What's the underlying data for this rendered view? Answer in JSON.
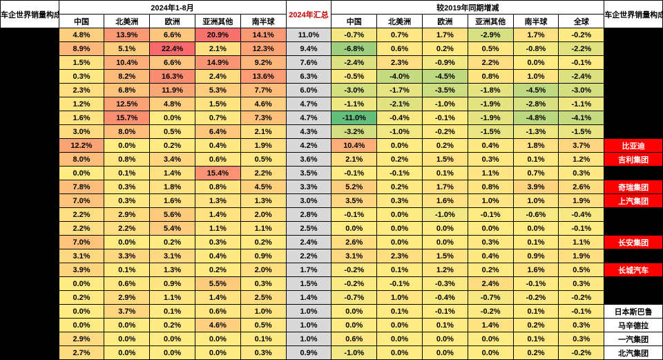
{
  "headers": {
    "left_title": "车企世界销量构成",
    "right_title": "车企世界销量构成",
    "group1": "2024年1-8月",
    "group2": "2024年汇总",
    "group3": "较2019年同期增减",
    "cols1": [
      "中国",
      "北美洲",
      "欧洲",
      "亚洲其他",
      "南半球"
    ],
    "total_col": "",
    "cols3": [
      "中国",
      "北美洲",
      "欧洲",
      "亚洲其他",
      "南半球",
      "全球"
    ]
  },
  "colorScale": {
    "min": -11.0,
    "mid": 0.0,
    "max": 22.4,
    "neg": "#63be7b",
    "zero": "#ffeb84",
    "pos": "#f8696b"
  },
  "totalBg": "#d9d9d9",
  "rows": [
    {
      "left": "",
      "right": "",
      "rightStyle": "black",
      "p1": [
        4.8,
        13.9,
        6.6,
        20.9,
        14.1
      ],
      "tot": 11.0,
      "p3": [
        -0.7,
        0.7,
        1.7,
        -2.9,
        1.7,
        -0.2
      ]
    },
    {
      "left": "",
      "right": "",
      "rightStyle": "black",
      "p1": [
        8.9,
        5.1,
        22.4,
        2.1,
        12.3
      ],
      "tot": 9.4,
      "p3": [
        -6.8,
        0.6,
        0.2,
        0.5,
        -0.8,
        -2.2
      ]
    },
    {
      "left": "",
      "right": "",
      "rightStyle": "black",
      "p1": [
        1.5,
        10.4,
        6.6,
        14.9,
        9.2
      ],
      "tot": 7.6,
      "p3": [
        -2.4,
        2.3,
        -0.9,
        2.2,
        0.0,
        -0.1
      ]
    },
    {
      "left": "",
      "right": "",
      "rightStyle": "black",
      "p1": [
        0.3,
        8.2,
        16.3,
        2.4,
        13.6
      ],
      "tot": 6.3,
      "p3": [
        -0.5,
        -4.0,
        -4.5,
        0.8,
        1.0,
        -2.4
      ]
    },
    {
      "left": "",
      "right": "",
      "rightStyle": "black",
      "p1": [
        2.3,
        6.8,
        11.9,
        5.3,
        7.7
      ],
      "tot": 6.0,
      "p3": [
        -3.0,
        -1.7,
        -3.5,
        -1.8,
        -4.5,
        -3.0
      ]
    },
    {
      "left": "",
      "right": "",
      "rightStyle": "black",
      "p1": [
        1.2,
        12.5,
        4.8,
        1.5,
        4.6
      ],
      "tot": 4.7,
      "p3": [
        -1.1,
        -2.1,
        -1.0,
        -1.9,
        -2.8,
        -1.1
      ]
    },
    {
      "left": "",
      "right": "",
      "rightStyle": "black",
      "p1": [
        1.6,
        15.7,
        0.0,
        0.7,
        7.3
      ],
      "tot": 4.7,
      "p3": [
        -11.0,
        -0.4,
        -0.1,
        -1.9,
        -4.8,
        -4.1
      ]
    },
    {
      "left": "",
      "right": "",
      "rightStyle": "black",
      "p1": [
        3.0,
        8.0,
        0.5,
        6.4,
        2.1
      ],
      "tot": 4.3,
      "p3": [
        -3.2,
        -1.0,
        -0.2,
        -1.5,
        -1.3,
        -1.5
      ]
    },
    {
      "left": "",
      "right": "比亚迪",
      "rightStyle": "red",
      "p1": [
        12.2,
        0.0,
        0.2,
        0.4,
        1.9
      ],
      "tot": 4.2,
      "p3": [
        10.4,
        0.0,
        0.2,
        0.4,
        1.8,
        3.7
      ]
    },
    {
      "left": "",
      "right": "吉利集团",
      "rightStyle": "red",
      "p1": [
        8.0,
        0.8,
        3.4,
        0.6,
        0.5
      ],
      "tot": 3.6,
      "p3": [
        2.1,
        0.2,
        1.5,
        0.3,
        0.1,
        1.2
      ]
    },
    {
      "left": "",
      "right": "",
      "rightStyle": "black",
      "p1": [
        0.0,
        0.1,
        1.4,
        15.4,
        2.2
      ],
      "tot": 3.5,
      "p3": [
        -0.1,
        -0.1,
        0.1,
        1.1,
        0.7,
        0.3
      ]
    },
    {
      "left": "",
      "right": "奇瑞集团",
      "rightStyle": "red",
      "p1": [
        7.8,
        0.3,
        1.8,
        0.8,
        4.5
      ],
      "tot": 3.3,
      "p3": [
        5.2,
        0.2,
        1.7,
        0.8,
        3.9,
        2.6
      ]
    },
    {
      "left": "",
      "right": "上汽集团",
      "rightStyle": "red",
      "p1": [
        7.0,
        0.3,
        1.6,
        1.3,
        1.3
      ],
      "tot": 3.0,
      "p3": [
        3.5,
        0.3,
        1.6,
        1.0,
        1.0,
        1.9
      ]
    },
    {
      "left": "",
      "right": "",
      "rightStyle": "black",
      "p1": [
        2.2,
        2.9,
        5.6,
        1.4,
        2.0
      ],
      "tot": 2.8,
      "p3": [
        -0.1,
        0.0,
        -1.0,
        -0.1,
        -0.6,
        -0.4
      ]
    },
    {
      "left": "",
      "right": "",
      "rightStyle": "black",
      "p1": [
        2.2,
        2.2,
        5.4,
        1.1,
        1.1
      ],
      "tot": 2.5,
      "p3": [
        0.0,
        0.0,
        0.0,
        0.0,
        0.0,
        -0.1
      ]
    },
    {
      "left": "",
      "right": "长安集团",
      "rightStyle": "red",
      "p1": [
        7.0,
        0.0,
        0.2,
        0.3,
        0.2
      ],
      "tot": 2.4,
      "p3": [
        2.6,
        0.0,
        0.0,
        0.3,
        0.1,
        1.1
      ]
    },
    {
      "left": "",
      "right": "",
      "rightStyle": "black",
      "p1": [
        3.1,
        3.3,
        3.1,
        0.4,
        0.9
      ],
      "tot": 2.2,
      "p3": [
        3.1,
        2.3,
        1.5,
        0.4,
        0.9,
        1.9
      ]
    },
    {
      "left": "",
      "right": "长城汽车",
      "rightStyle": "red",
      "p1": [
        3.9,
        0.1,
        1.3,
        0.2,
        2.0
      ],
      "tot": 1.7,
      "p3": [
        -0.2,
        0.1,
        1.2,
        0.2,
        1.6,
        0.5
      ]
    },
    {
      "left": "",
      "right": "",
      "rightStyle": "black",
      "p1": [
        0.0,
        0.6,
        0.9,
        5.5,
        0.3
      ],
      "tot": 1.5,
      "p3": [
        -0.2,
        -0.1,
        -0.3,
        2.4,
        -0.1,
        0.3
      ]
    },
    {
      "left": "",
      "right": "",
      "rightStyle": "black",
      "p1": [
        0.2,
        2.9,
        1.1,
        1.4,
        2.5
      ],
      "tot": 1.4,
      "p3": [
        -0.7,
        1.0,
        -0.4,
        -0.7,
        -0.2,
        -0.2
      ]
    },
    {
      "left": "",
      "right": "日本斯巴鲁",
      "rightStyle": "white",
      "p1": [
        0.0,
        3.7,
        0.1,
        0.6,
        1.0
      ],
      "tot": 1.0,
      "p3": [
        0.0,
        0.1,
        -0.1,
        -0.2,
        0.1,
        -0.1
      ]
    },
    {
      "left": "",
      "right": "马辛德拉",
      "rightStyle": "white",
      "p1": [
        0.0,
        0.0,
        0.2,
        4.6,
        0.5
      ],
      "tot": 1.0,
      "p3": [
        0.0,
        0.0,
        0.1,
        1.4,
        0.2,
        0.3
      ]
    },
    {
      "left": "",
      "right": "一汽集团",
      "rightStyle": "white",
      "p1": [
        2.9,
        0.0,
        0.0,
        0.0,
        0.1
      ],
      "tot": 1.0,
      "p3": [
        0.6,
        0.0,
        0.0,
        0.0,
        0.1,
        0.3
      ]
    },
    {
      "left": "",
      "right": "北汽集团",
      "rightStyle": "white",
      "p1": [
        2.7,
        0.0,
        0.0,
        0.0,
        0.3
      ],
      "tot": 0.9,
      "p3": [
        -1.0,
        0.0,
        0.0,
        0.0,
        0.2,
        -0.2
      ]
    }
  ]
}
